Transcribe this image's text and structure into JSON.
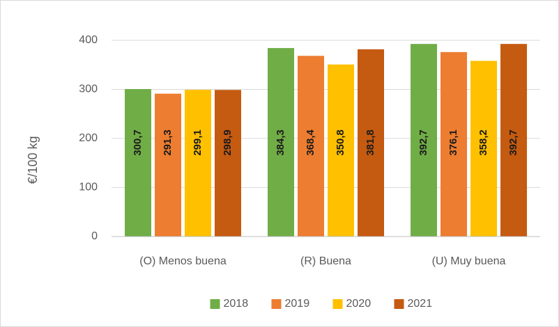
{
  "chart_data": {
    "type": "bar",
    "y_label": "€/100 kg",
    "categories": [
      "(O) Menos buena",
      "(R) Buena",
      "(U) Muy buena"
    ],
    "series": [
      {
        "name": "2018",
        "color": "#70ad47",
        "values": [
          300.7,
          384.3,
          392.7
        ],
        "value_labels": [
          "300,7",
          "384,3",
          "392,7"
        ]
      },
      {
        "name": "2019",
        "color": "#ed7d31",
        "values": [
          291.3,
          368.4,
          376.1
        ],
        "value_labels": [
          "291,3",
          "368,4",
          "376,1"
        ]
      },
      {
        "name": "2020",
        "color": "#ffc000",
        "values": [
          299.1,
          350.8,
          358.2
        ],
        "value_labels": [
          "299,1",
          "350,8",
          "358,2"
        ]
      },
      {
        "name": "2021",
        "color": "#c55a11",
        "values": [
          298.9,
          381.8,
          392.7
        ],
        "value_labels": [
          "298,9",
          "381,8",
          "392,7"
        ]
      }
    ],
    "ylim": [
      0,
      400
    ],
    "yticks": [
      0,
      100,
      200,
      300,
      400
    ],
    "grid": true,
    "legend": "bottom"
  }
}
